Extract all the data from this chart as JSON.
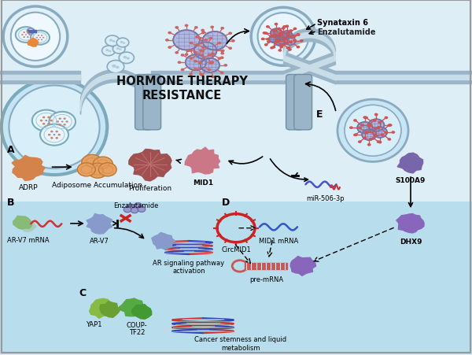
{
  "bg_light": "#ddeef7",
  "bg_inner": "#c5e2f0",
  "mem_color": "#9ab5c8",
  "mem_light": "#d0e8f5",
  "title": "HORMONE THERAPY\nRESISTANCE",
  "label_A": "A",
  "label_B": "B",
  "label_C": "C",
  "label_D": "D",
  "label_E": "E",
  "txt_ADRP": "ADRP",
  "txt_adipo": "Adiposome Accumulation",
  "txt_prolif": "Proliferation",
  "txt_MID1": "MID1",
  "txt_ARV7mRNA": "AR-V7 mRNA",
  "txt_ARV7": "AR-V7",
  "txt_Enz_B": "Enzalutamide",
  "txt_AR_sig": "AR signaling pathway\nactivation",
  "txt_YAP1": "YAP1",
  "txt_COUP": "COUP-\nTF22",
  "txt_cancer": "Cancer stemness and liquid\nmetabolism",
  "txt_CircMID1": "CircMID1",
  "txt_MID1mRNA": "MID1 mRNA",
  "txt_premRNA": "pre-mRNA",
  "txt_miR": "miR-506-3p",
  "txt_S100A9": "S100A9",
  "txt_DHX9": "DHX9",
  "txt_Syn6": "Synataxin 6",
  "txt_EnzE": "Enzalutamide"
}
